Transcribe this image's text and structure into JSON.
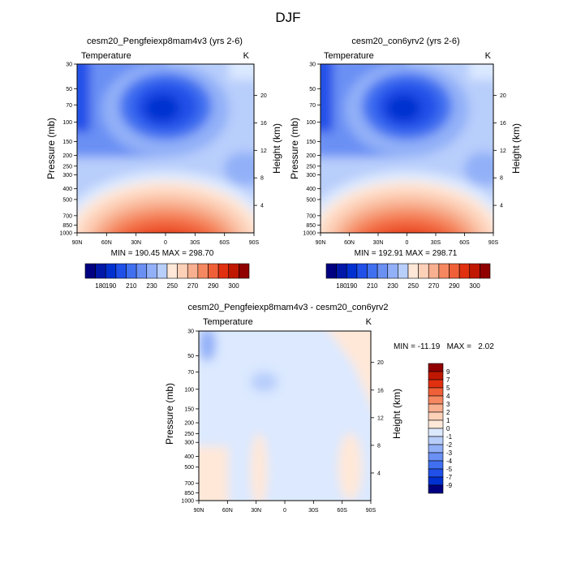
{
  "page_title": "DJF",
  "palette": [
    "#000080",
    "#0018A8",
    "#0030D0",
    "#2050E8",
    "#4070F0",
    "#6A90F4",
    "#92B0F8",
    "#B8CEFB",
    "#DCE9FF",
    "#FFE8D8",
    "#FDD0B8",
    "#F8B090",
    "#F58860",
    "#F06038",
    "#E03010",
    "#C01800",
    "#900000"
  ],
  "colorbar_top": {
    "ticks": [
      "180",
      "190",
      "210",
      "230",
      "250",
      "270",
      "290",
      "300"
    ]
  },
  "colorbar_diff": {
    "ticks": [
      "9",
      "7",
      "5",
      "4",
      "3",
      "2",
      "1",
      "0",
      "-1",
      "-2",
      "-3",
      "-4",
      "-5",
      "-7",
      "-9"
    ]
  },
  "chart_data": [
    {
      "type": "heatmap",
      "title": "cesm20_Pengfeiexp8mam4v3 (yrs 2-6)",
      "variable_label": "Temperature",
      "units_label": "K",
      "ylabel": "Pressure (mb)",
      "ylabel_right": "Height (km)",
      "x_ticks": [
        "90N",
        "60N",
        "30N",
        "0",
        "30S",
        "60S",
        "90S"
      ],
      "y_ticks": [
        "30",
        "50",
        "70",
        "100",
        "150",
        "200",
        "250",
        "300",
        "400",
        "500",
        "700",
        "850",
        "1000"
      ],
      "y_ticks_right": [
        "20",
        "16",
        "12",
        "8",
        "4"
      ],
      "log_pressure_axis": true,
      "stats_text": "MIN = 190.45   MAX = 298.70",
      "min": 190.45,
      "max": 298.7,
      "levels": [
        180,
        190,
        200,
        210,
        220,
        230,
        240,
        250,
        260,
        270,
        280,
        290,
        300
      ],
      "field_note": "cold minimum ~190 K near 100 mb over equator; warm maximum ~298 K at surface near equator"
    },
    {
      "type": "heatmap",
      "title": "cesm20_con6yrv2 (yrs 2-6)",
      "variable_label": "Temperature",
      "units_label": "K",
      "ylabel": "Pressure (mb)",
      "ylabel_right": "Height (km)",
      "x_ticks": [
        "90N",
        "60N",
        "30N",
        "0",
        "30S",
        "60S",
        "90S"
      ],
      "y_ticks": [
        "30",
        "50",
        "70",
        "100",
        "150",
        "200",
        "250",
        "300",
        "400",
        "500",
        "700",
        "850",
        "1000"
      ],
      "y_ticks_right": [
        "20",
        "16",
        "12",
        "8",
        "4"
      ],
      "log_pressure_axis": true,
      "stats_text": "MIN = 192.91   MAX = 298.71",
      "min": 192.91,
      "max": 298.71,
      "levels": [
        180,
        190,
        200,
        210,
        220,
        230,
        240,
        250,
        260,
        270,
        280,
        290,
        300
      ]
    },
    {
      "type": "heatmap",
      "title": "cesm20_Pengfeiexp8mam4v3 - cesm20_con6yrv2",
      "variable_label": "Temperature",
      "units_label": "K",
      "ylabel": "Pressure (mb)",
      "ylabel_right": "Height (km)",
      "x_ticks": [
        "90N",
        "60N",
        "30N",
        "0",
        "30S",
        "60S",
        "90S"
      ],
      "y_ticks": [
        "30",
        "50",
        "70",
        "100",
        "150",
        "200",
        "250",
        "300",
        "400",
        "500",
        "700",
        "850",
        "1000"
      ],
      "y_ticks_right": [
        "20",
        "16",
        "12",
        "8",
        "4"
      ],
      "log_pressure_axis": true,
      "stats_text": "MIN = -11.19   MAX =   2.02",
      "min": -11.19,
      "max": 2.02,
      "levels": [
        -9,
        -7,
        -5,
        -4,
        -3,
        -2,
        -1,
        0,
        1,
        2,
        3,
        4,
        5,
        7,
        9
      ]
    }
  ]
}
